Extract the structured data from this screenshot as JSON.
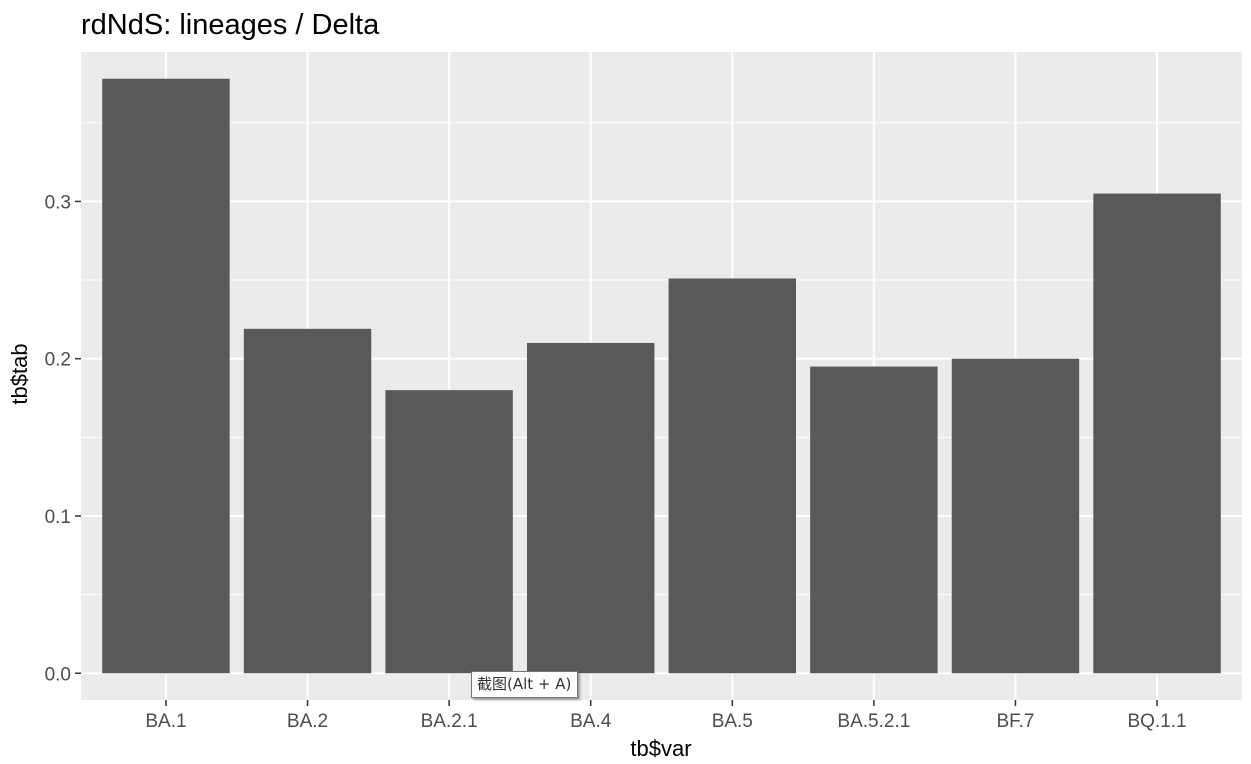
{
  "chart_data": {
    "type": "bar",
    "title": "rdNdS: lineages / Delta",
    "xlabel": "tb$var",
    "ylabel": "tb$tab",
    "categories": [
      "BA.1",
      "BA.2",
      "BA.2.1",
      "BA.4",
      "BA.5",
      "BA.5.2.1",
      "BF.7",
      "BQ.1.1"
    ],
    "values": [
      0.378,
      0.219,
      0.18,
      0.21,
      0.251,
      0.195,
      0.2,
      0.305
    ],
    "ylim": [
      -0.017,
      0.395
    ],
    "yticks": [
      0.0,
      0.1,
      0.2,
      0.3
    ],
    "ytick_labels": [
      "0.0",
      "0.1",
      "0.2",
      "0.3"
    ],
    "grid": true,
    "panel_color": "#ebebeb",
    "bar_color": "#595959",
    "grid_color": "#ffffff"
  },
  "tooltip": {
    "text": "截图(Alt + A)"
  }
}
